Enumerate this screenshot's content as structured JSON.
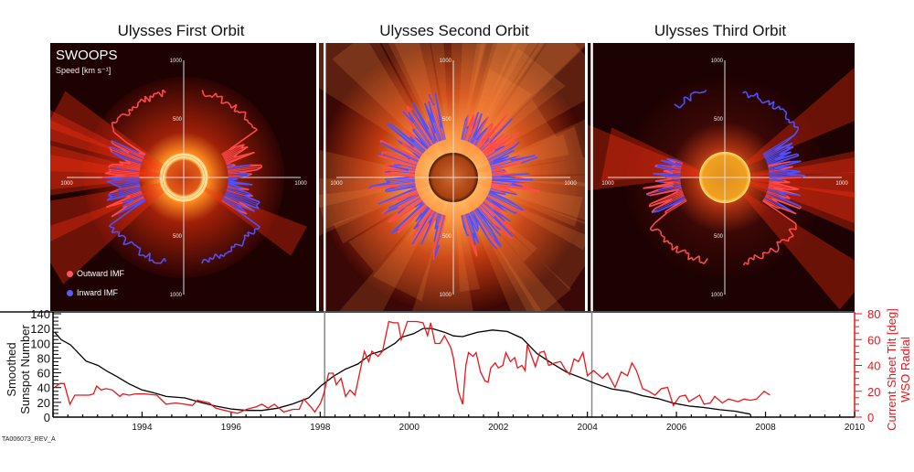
{
  "panels": [
    {
      "title": "Ulysses First Orbit",
      "polarity_north": "outward"
    },
    {
      "title": "Ulysses Second Orbit",
      "polarity_north": "mixed"
    },
    {
      "title": "Ulysses Third Orbit",
      "polarity_north": "inward"
    }
  ],
  "panel_labels": {
    "instrument": "SWOOPS",
    "speed_unit": "Speed [km s⁻¹]",
    "legend": [
      {
        "label": "Outward IMF",
        "color": "#ff5a5a"
      },
      {
        "label": "Inward IMF",
        "color": "#5a5aff"
      }
    ],
    "polar_axis": {
      "top": "1000",
      "upper": "500",
      "lower": "500",
      "bottom": "1000",
      "left": "1000",
      "right": "1000"
    }
  },
  "footer": "TA006073_REV_A",
  "chart_data": {
    "type": "line",
    "xlim": [
      1992,
      2010
    ],
    "x_ticks": [
      "1994",
      "1996",
      "1998",
      "2000",
      "2002",
      "2004",
      "2006",
      "2008",
      "2010"
    ],
    "ylabel_left": [
      "Smoothed",
      "Sunspot Number"
    ],
    "ylabel_right": [
      "Current Sheet Tilt [deg]",
      "WSO Radial"
    ],
    "ylim_left": [
      0,
      140
    ],
    "ylim_right": [
      0,
      80
    ],
    "y_ticks_left": [
      "0",
      "20",
      "40",
      "60",
      "80",
      "100",
      "120",
      "140"
    ],
    "y_ticks_right": [
      "0",
      "20",
      "40",
      "60",
      "80"
    ],
    "orbit_boundaries": [
      1998.1,
      2004.1
    ],
    "colors": {
      "sunspot": "#000000",
      "tilt": "#e8161b",
      "right_axis": "#e8161b"
    },
    "series": [
      {
        "axis": "left",
        "color": "#000000",
        "x": [
          1992.04,
          1992.18,
          1992.39,
          1992.6,
          1992.74,
          1993.01,
          1993.22,
          1993.43,
          1993.71,
          1993.99,
          1994.26,
          1994.54,
          1994.96,
          1995.31,
          1995.65,
          1996.0,
          1996.35,
          1996.69,
          1997.04,
          1997.39,
          1997.74,
          1998.01,
          1998.29,
          1998.57,
          1998.85,
          1999.13,
          1999.4,
          1999.68,
          1999.82,
          2000.1,
          2000.31,
          2000.51,
          2000.79,
          2000.99,
          2001.2,
          2001.53,
          2001.87,
          2002.2,
          2002.53,
          2002.87,
          2003.2,
          2003.53,
          2003.87,
          2004.2,
          2004.55,
          2004.9,
          2005.24,
          2005.59,
          2005.93,
          2006.28,
          2006.62,
          2006.97,
          2007.31,
          2007.66
        ],
        "y": [
          115,
          105,
          98,
          85,
          76,
          70,
          62,
          55,
          45,
          37,
          33,
          28,
          26,
          20,
          15,
          11,
          9,
          9,
          12,
          18,
          26,
          42,
          55,
          65,
          72,
          85,
          90,
          100,
          108,
          113,
          120,
          120,
          115,
          110,
          109,
          115,
          118,
          116,
          107,
          86,
          73,
          61,
          53,
          45,
          38,
          35,
          29,
          25,
          19,
          15,
          13,
          10,
          8,
          4
        ]
      },
      {
        "axis": "right",
        "color": "#e8161b",
        "x": [
          1992.04,
          1992.15,
          1992.25,
          1992.38,
          1992.49,
          1992.63,
          1992.81,
          1992.91,
          1992.98,
          1993.08,
          1993.19,
          1993.33,
          1993.5,
          1993.57,
          1993.71,
          1993.85,
          1994.06,
          1994.33,
          1994.54,
          1994.75,
          1994.96,
          1995.13,
          1995.24,
          1995.51,
          1995.65,
          1996.0,
          1996.14,
          1996.35,
          1996.56,
          1996.69,
          1996.83,
          1996.97,
          1997.18,
          1997.39,
          1997.53,
          1997.63,
          1997.81,
          1997.88,
          1998.01,
          1998.08,
          1998.19,
          1998.29,
          1998.36,
          1998.47,
          1998.57,
          1998.67,
          1998.78,
          1998.99,
          1999.09,
          1999.16,
          1999.3,
          1999.4,
          1999.54,
          1999.65,
          1999.75,
          1999.82,
          1999.96,
          2000.17,
          2000.31,
          2000.41,
          2000.48,
          2000.58,
          2000.69,
          2000.79,
          2000.93,
          2000.99,
          2001.1,
          2001.2,
          2001.27,
          2001.33,
          2001.43,
          2001.5,
          2001.6,
          2001.7,
          2001.77,
          2001.83,
          2001.93,
          2002.0,
          2002.1,
          2002.17,
          2002.27,
          2002.37,
          2002.43,
          2002.53,
          2002.6,
          2002.65,
          2002.77,
          2002.83,
          2002.93,
          2003.03,
          2003.13,
          2003.27,
          2003.4,
          2003.5,
          2003.6,
          2003.7,
          2003.8,
          2003.9,
          2004.0,
          2004.14,
          2004.34,
          2004.45,
          2004.62,
          2004.76,
          2004.9,
          2005.0,
          2005.1,
          2005.24,
          2005.38,
          2005.52,
          2005.66,
          2005.8,
          2005.93,
          2006.07,
          2006.2,
          2006.28,
          2006.52,
          2006.62,
          2006.76,
          2006.86,
          2007.03,
          2007.17,
          2007.38,
          2007.52,
          2007.66,
          2007.8,
          2007.97,
          2008.1
        ],
        "y": [
          23,
          26,
          26,
          10,
          17,
          17,
          17,
          18,
          24,
          21,
          22,
          21,
          16,
          18,
          17,
          18,
          18,
          17,
          10,
          11,
          10,
          9,
          13,
          11,
          7,
          4,
          3,
          6,
          8,
          10,
          7,
          10,
          4,
          6,
          6,
          14,
          7,
          4,
          11,
          18,
          34,
          34,
          25,
          30,
          16,
          21,
          17,
          51,
          43,
          51,
          47,
          51,
          74,
          73,
          73,
          60,
          74,
          74,
          73,
          63,
          73,
          57,
          57,
          63,
          54,
          46,
          20,
          10,
          40,
          50,
          47,
          50,
          35,
          28,
          27,
          38,
          42,
          38,
          40,
          50,
          43,
          46,
          38,
          40,
          36,
          56,
          45,
          39,
          50,
          51,
          40,
          42,
          43,
          37,
          33,
          45,
          43,
          50,
          32,
          36,
          30,
          34,
          23,
          35,
          32,
          42,
          36,
          22,
          20,
          17,
          22,
          23,
          9,
          16,
          17,
          12,
          17,
          10,
          11,
          16,
          11,
          14,
          12,
          14,
          13,
          14,
          20,
          17
        ]
      }
    ]
  }
}
